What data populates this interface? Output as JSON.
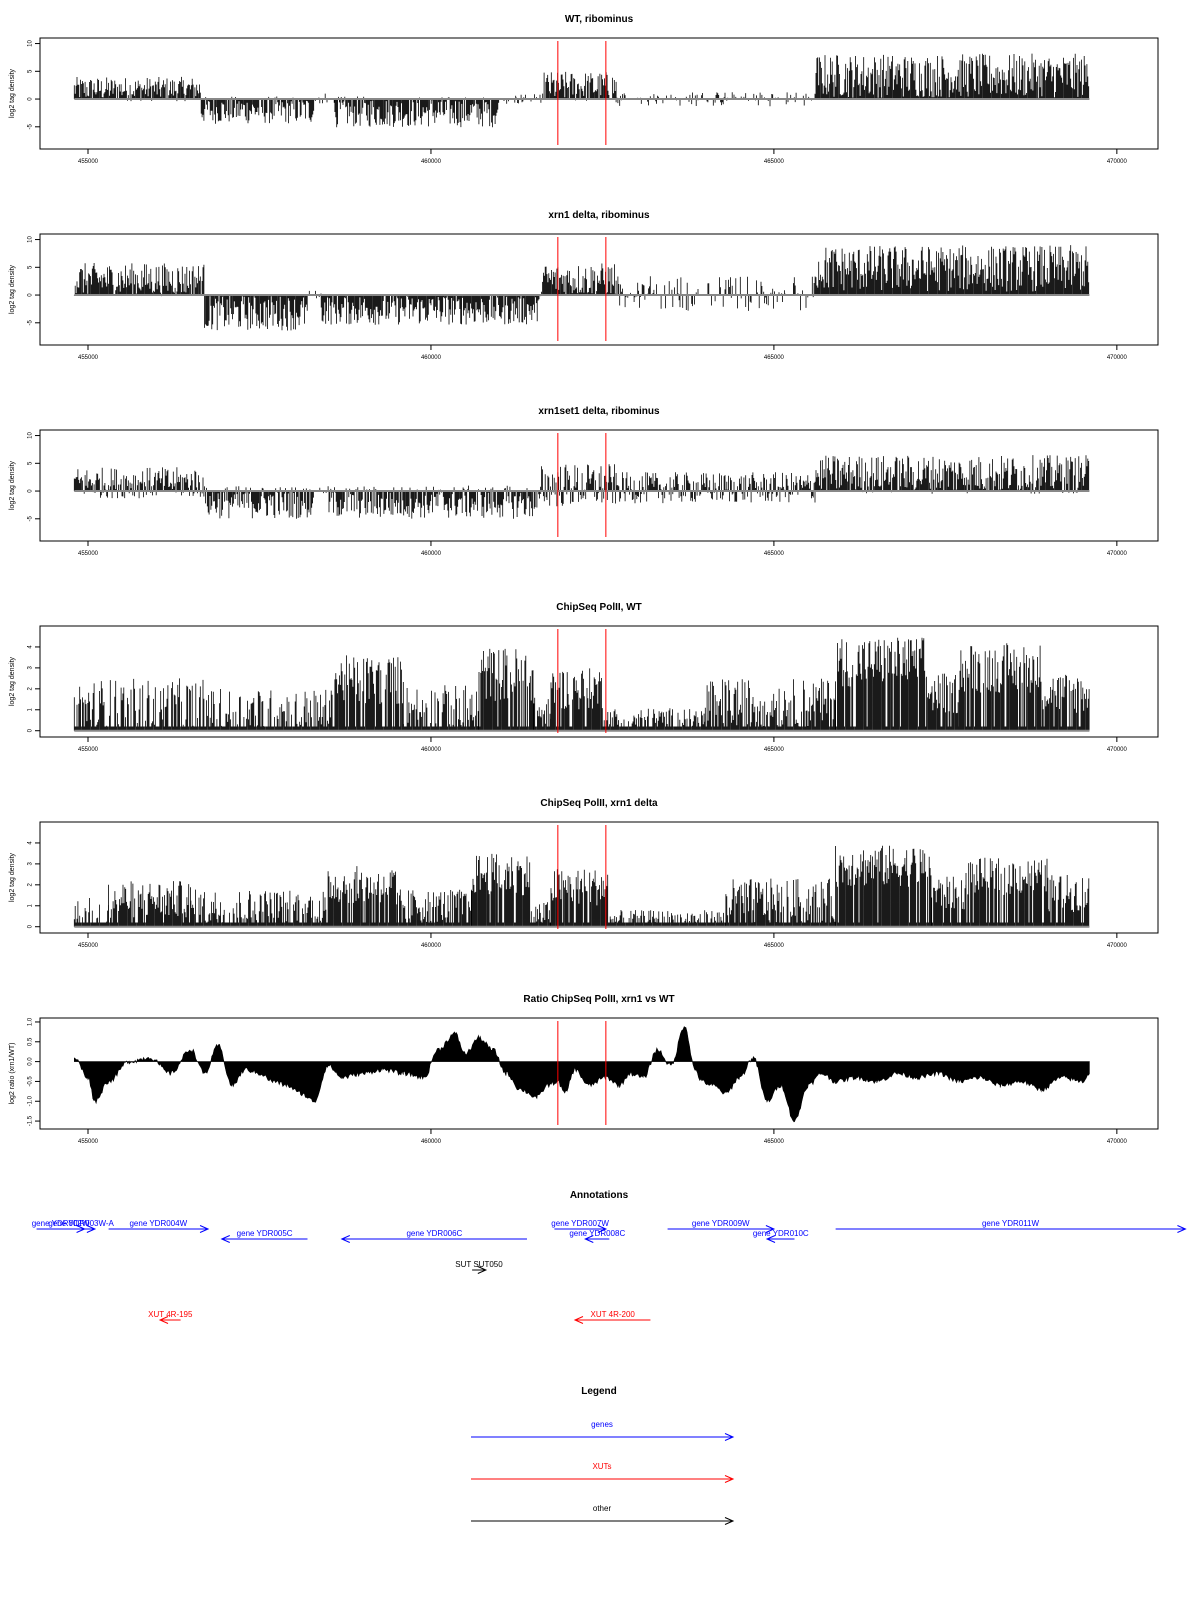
{
  "chart_data": [
    {
      "type": "bar",
      "title": "WT, ribominus",
      "ylabel": "log2 tag density",
      "xlim": [
        454300,
        470600
      ],
      "ylim": [
        -9,
        11
      ],
      "xticks": [
        455000,
        460000,
        465000,
        470000
      ],
      "yticks": [
        -5,
        0,
        5,
        10
      ],
      "markers": [
        461850,
        462550
      ],
      "segments": [
        {
          "x": [
            454800,
            456650
          ],
          "mean": 1.8,
          "amp": 2.2
        },
        {
          "x": [
            456650,
            458300
          ],
          "mean": -2.0,
          "amp": 2.5
        },
        {
          "x": [
            458300,
            458600
          ],
          "mean": 0,
          "amp": 1.0
        },
        {
          "x": [
            458600,
            461000
          ],
          "mean": -2.3,
          "amp": 2.8
        },
        {
          "x": [
            461000,
            461650
          ],
          "mean": 0,
          "amp": 1.0
        },
        {
          "x": [
            461650,
            462700
          ],
          "mean": 2.2,
          "amp": 2.8
        },
        {
          "x": [
            462700,
            465600
          ],
          "mean": 0,
          "amp": 1.3
        },
        {
          "x": [
            465600,
            469600
          ],
          "mean": 4.2,
          "amp": 4.0
        }
      ]
    },
    {
      "type": "bar",
      "title": "xrn1 delta, ribominus",
      "ylabel": "log2 tag density",
      "xlim": [
        454300,
        470600
      ],
      "ylim": [
        -9,
        11
      ],
      "xticks": [
        455000,
        460000,
        465000,
        470000
      ],
      "yticks": [
        -5,
        0,
        5,
        10
      ],
      "markers": [
        461850,
        462550
      ],
      "segments": [
        {
          "x": [
            454800,
            456700
          ],
          "mean": 2.8,
          "amp": 3.0
        },
        {
          "x": [
            456700,
            458200
          ],
          "mean": -3.2,
          "amp": 3.2
        },
        {
          "x": [
            458200,
            458400
          ],
          "mean": 0,
          "amp": 0.8
        },
        {
          "x": [
            458400,
            461600
          ],
          "mean": -2.6,
          "amp": 2.8
        },
        {
          "x": [
            461600,
            462700
          ],
          "mean": 2.8,
          "amp": 3.0
        },
        {
          "x": [
            462700,
            465600
          ],
          "mean": 0.3,
          "amp": 3.2
        },
        {
          "x": [
            465600,
            469600
          ],
          "mean": 4.8,
          "amp": 4.2
        }
      ]
    },
    {
      "type": "bar",
      "title": "xrn1set1 delta, ribominus",
      "ylabel": "log2 tag density",
      "xlim": [
        454300,
        470600
      ],
      "ylim": [
        -9,
        11
      ],
      "xticks": [
        455000,
        460000,
        465000,
        470000
      ],
      "yticks": [
        -5,
        0,
        5,
        10
      ],
      "markers": [
        461850,
        462550
      ],
      "segments": [
        {
          "x": [
            454800,
            456700
          ],
          "mean": 1.5,
          "amp": 2.8
        },
        {
          "x": [
            456700,
            458300
          ],
          "mean": -2.0,
          "amp": 3.0
        },
        {
          "x": [
            458300,
            458500
          ],
          "mean": 0,
          "amp": 0.8
        },
        {
          "x": [
            458500,
            461600
          ],
          "mean": -2.0,
          "amp": 3.0
        },
        {
          "x": [
            461600,
            462700
          ],
          "mean": 1.0,
          "amp": 4.0
        },
        {
          "x": [
            462700,
            465600
          ],
          "mean": 0.6,
          "amp": 2.8
        },
        {
          "x": [
            465600,
            469600
          ],
          "mean": 3.0,
          "amp": 3.5
        }
      ]
    },
    {
      "type": "bar",
      "title": "ChipSeq PolII, WT",
      "ylabel": "log2 tag density",
      "xlim": [
        454300,
        470600
      ],
      "ylim": [
        -0.3,
        5
      ],
      "xticks": [
        455000,
        460000,
        465000,
        470000
      ],
      "yticks": [
        0,
        1,
        2,
        3,
        4
      ],
      "markers": [
        461850,
        462550
      ],
      "segments": [
        {
          "x": [
            454800,
            456800
          ],
          "mean": 1.0,
          "amp": 1.5
        },
        {
          "x": [
            456800,
            458600
          ],
          "mean": 0.8,
          "amp": 1.2
        },
        {
          "x": [
            458600,
            459600
          ],
          "mean": 2.4,
          "amp": 1.2
        },
        {
          "x": [
            459600,
            460700
          ],
          "mean": 1.0,
          "amp": 1.2
        },
        {
          "x": [
            460700,
            461500
          ],
          "mean": 2.7,
          "amp": 1.3
        },
        {
          "x": [
            461500,
            461750
          ],
          "mean": 0.8,
          "amp": 0.8
        },
        {
          "x": [
            461750,
            462500
          ],
          "mean": 2.0,
          "amp": 1.0
        },
        {
          "x": [
            462500,
            464000
          ],
          "mean": 0.5,
          "amp": 0.6
        },
        {
          "x": [
            464000,
            465900
          ],
          "mean": 1.3,
          "amp": 1.2
        },
        {
          "x": [
            465900,
            467200
          ],
          "mean": 3.3,
          "amp": 1.2
        },
        {
          "x": [
            467200,
            467700
          ],
          "mean": 1.8,
          "amp": 1.0
        },
        {
          "x": [
            467700,
            468900
          ],
          "mean": 3.0,
          "amp": 1.2
        },
        {
          "x": [
            468900,
            469600
          ],
          "mean": 1.8,
          "amp": 1.0
        }
      ]
    },
    {
      "type": "bar",
      "title": "ChipSeq PolII, xrn1 delta",
      "ylabel": "log2 tag density",
      "xlim": [
        454300,
        470600
      ],
      "ylim": [
        -0.3,
        5
      ],
      "xticks": [
        455000,
        460000,
        465000,
        470000
      ],
      "yticks": [
        0,
        1,
        2,
        3,
        4
      ],
      "markers": [
        461850,
        462550
      ],
      "segments": [
        {
          "x": [
            454800,
            455300
          ],
          "mean": 0.4,
          "amp": 1.0
        },
        {
          "x": [
            455300,
            456500
          ],
          "mean": 1.3,
          "amp": 0.9
        },
        {
          "x": [
            456500,
            458500
          ],
          "mean": 0.9,
          "amp": 0.9
        },
        {
          "x": [
            458500,
            459500
          ],
          "mean": 2.0,
          "amp": 0.9
        },
        {
          "x": [
            459500,
            460600
          ],
          "mean": 1.0,
          "amp": 0.8
        },
        {
          "x": [
            460600,
            461450
          ],
          "mean": 2.5,
          "amp": 1.0
        },
        {
          "x": [
            461450,
            461750
          ],
          "mean": 0.6,
          "amp": 0.6
        },
        {
          "x": [
            461750,
            462600
          ],
          "mean": 1.9,
          "amp": 0.9
        },
        {
          "x": [
            462600,
            464300
          ],
          "mean": 0.3,
          "amp": 0.5
        },
        {
          "x": [
            464300,
            465900
          ],
          "mean": 1.2,
          "amp": 1.1
        },
        {
          "x": [
            465900,
            467300
          ],
          "mean": 2.9,
          "amp": 1.0
        },
        {
          "x": [
            467300,
            467800
          ],
          "mean": 1.6,
          "amp": 0.8
        },
        {
          "x": [
            467800,
            469000
          ],
          "mean": 2.4,
          "amp": 0.9
        },
        {
          "x": [
            469000,
            469600
          ],
          "mean": 1.6,
          "amp": 0.9
        }
      ]
    },
    {
      "type": "area",
      "title": "Ratio ChipSeq PolII, xrn1 vs WT",
      "ylabel": "log2 ratio (xrn1/WT)",
      "xlim": [
        454300,
        470600
      ],
      "ylim": [
        -1.7,
        1.1
      ],
      "xticks": [
        455000,
        460000,
        465000,
        470000
      ],
      "yticks": [
        -1.5,
        -1.0,
        -0.5,
        0.0,
        0.5,
        1.0
      ],
      "yticklabels": [
        "-1.5",
        "-1.0",
        "-0.5",
        "0.0",
        "0.5",
        "1.0"
      ],
      "markers": [
        461850,
        462550
      ],
      "x": [
        454800,
        455000,
        455100,
        455300,
        455600,
        455900,
        456200,
        456500,
        456700,
        456900,
        457100,
        457300,
        457500,
        457700,
        457900,
        458100,
        458300,
        458500,
        458700,
        459000,
        459300,
        459600,
        459900,
        460100,
        460350,
        460500,
        460700,
        460900,
        461100,
        461300,
        461550,
        461700,
        461850,
        461950,
        462100,
        462300,
        462550,
        462750,
        462900,
        463100,
        463300,
        463500,
        463700,
        463850,
        463950,
        464100,
        464300,
        464500,
        464700,
        464900,
        465100,
        465300,
        465500,
        465700,
        465900,
        466200,
        466500,
        466800,
        467100,
        467400,
        467700,
        468000,
        468300,
        468600,
        468900,
        469200,
        469500,
        469600
      ],
      "y": [
        0.1,
        -0.4,
        -1.0,
        -0.5,
        0.0,
        0.1,
        -0.3,
        0.3,
        -0.3,
        0.4,
        -0.6,
        -0.2,
        -0.3,
        -0.5,
        -0.6,
        -0.8,
        -1.0,
        -0.1,
        -0.4,
        -0.3,
        -0.2,
        -0.3,
        -0.4,
        0.3,
        0.7,
        0.2,
        0.6,
        0.3,
        -0.3,
        -0.7,
        -0.9,
        -0.6,
        -0.5,
        -0.8,
        -0.2,
        -0.6,
        -0.4,
        -0.6,
        -0.3,
        -0.4,
        0.3,
        -0.1,
        0.9,
        -0.2,
        -0.5,
        -0.6,
        -0.8,
        -0.4,
        0.1,
        -1.0,
        -0.6,
        -1.5,
        -0.6,
        -0.3,
        -0.5,
        -0.4,
        -0.5,
        -0.3,
        -0.4,
        -0.3,
        -0.5,
        -0.4,
        -0.6,
        -0.5,
        -0.7,
        -0.4,
        -0.5,
        -0.3
      ]
    }
  ],
  "annotations": {
    "title": "Annotations",
    "xlim": [
      454300,
      470600
    ],
    "features": [
      {
        "label": "gene YDR002W",
        "start": 454250,
        "end": 454950,
        "strand": "+",
        "kind": "genes",
        "row": 0
      },
      {
        "label": "gene YDR003W-A",
        "start": 454700,
        "end": 455100,
        "strand": "+",
        "kind": "genes",
        "row": 0
      },
      {
        "label": "gene YDR004W",
        "start": 455300,
        "end": 456750,
        "strand": "+",
        "kind": "genes",
        "row": 0
      },
      {
        "label": "gene YDR005C",
        "start": 456950,
        "end": 458200,
        "strand": "-",
        "kind": "genes",
        "row": 1
      },
      {
        "label": "gene YDR006C",
        "start": 458700,
        "end": 461400,
        "strand": "-",
        "kind": "genes",
        "row": 1
      },
      {
        "label": "gene YDR007W",
        "start": 461800,
        "end": 462550,
        "strand": "+",
        "kind": "genes",
        "row": 0
      },
      {
        "label": "gene YDR008C",
        "start": 462250,
        "end": 462600,
        "strand": "-",
        "kind": "genes",
        "row": 1
      },
      {
        "label": "gene YDR009W",
        "start": 463450,
        "end": 465000,
        "strand": "+",
        "kind": "genes",
        "row": 0
      },
      {
        "label": "gene YDR010C",
        "start": 464900,
        "end": 465300,
        "strand": "-",
        "kind": "genes",
        "row": 1
      },
      {
        "label": "gene YDR011W",
        "start": 465900,
        "end": 471000,
        "strand": "+",
        "kind": "genes",
        "row": 0
      },
      {
        "label": "SUT SUT050",
        "start": 460600,
        "end": 460800,
        "strand": "+",
        "kind": "other",
        "row": 2
      },
      {
        "label": "XUT 4R-195",
        "start": 456050,
        "end": 456350,
        "strand": "-",
        "kind": "XUTs",
        "row": 3
      },
      {
        "label": "XUT 4R-200",
        "start": 462100,
        "end": 463200,
        "strand": "-",
        "kind": "XUTs",
        "row": 3
      }
    ]
  },
  "legend": {
    "title": "Legend",
    "items": [
      {
        "label": "genes",
        "color": "#0000ff"
      },
      {
        "label": "XUTs",
        "color": "#ff0000"
      },
      {
        "label": "other",
        "color": "#000000"
      }
    ]
  },
  "colors": {
    "bars": "#000000",
    "marker": "#ff0000",
    "genes": "#0000ff",
    "XUTs": "#ff0000",
    "other": "#000000",
    "zero_line": "#888888"
  }
}
